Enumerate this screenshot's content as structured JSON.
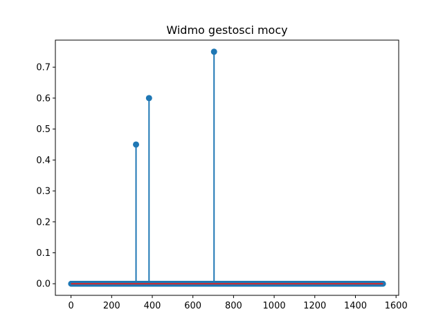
{
  "chart_data": {
    "type": "stem",
    "title": "Widmo gestosci mocy",
    "xlabel": "",
    "ylabel": "",
    "xlim": [
      -77,
      1613
    ],
    "ylim": [
      -0.0375,
      0.7875
    ],
    "xticks": [
      0,
      200,
      400,
      600,
      800,
      1000,
      1200,
      1400,
      1600
    ],
    "xtick_labels": [
      "0",
      "200",
      "400",
      "600",
      "800",
      "1000",
      "1200",
      "1400",
      "1600"
    ],
    "yticks": [
      0.0,
      0.1,
      0.2,
      0.3,
      0.4,
      0.5,
      0.6,
      0.7
    ],
    "ytick_labels": [
      "0.0",
      "0.1",
      "0.2",
      "0.3",
      "0.4",
      "0.5",
      "0.6",
      "0.7"
    ],
    "grid": false,
    "x_domain": [
      0,
      1536
    ],
    "baseline": 0,
    "peaks": [
      {
        "x": 320,
        "y": 0.45
      },
      {
        "x": 384,
        "y": 0.6
      },
      {
        "x": 704,
        "y": 0.75
      }
    ],
    "colors": {
      "stem": "#1f77b4",
      "marker": "#1f77b4",
      "baseline": "#d62728"
    }
  }
}
